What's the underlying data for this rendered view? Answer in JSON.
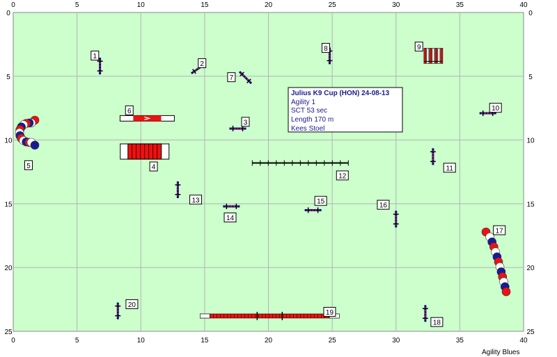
{
  "field": {
    "width_m": 40,
    "height_m": 25,
    "bg": "#ccffcc",
    "grid": "#b3b3b3"
  },
  "axes": {
    "x_ticks": [
      0,
      5,
      10,
      15,
      20,
      25,
      30,
      35,
      40
    ],
    "y_ticks": [
      0,
      5,
      10,
      15,
      20,
      25
    ]
  },
  "info": {
    "title": "Julius K9 Cup (HON) 24-08-13",
    "class": "Agility 1",
    "sct": "SCT 53 sec",
    "length": "Length 170 m",
    "judge": "Kees Stoel"
  },
  "footer": "Agility Blues",
  "colors": {
    "red": "#ee1111",
    "blue": "#1a1a99",
    "post": "#000088",
    "bar": "#cc2222"
  },
  "obstacles": [
    {
      "n": "1",
      "type": "jump",
      "x": 6.8,
      "y": 4.2,
      "angle": 90,
      "label": [
        6.4,
        3.4
      ]
    },
    {
      "n": "2",
      "type": "jump",
      "x": 14.5,
      "y": 4.4,
      "angle": -35,
      "label": [
        14.8,
        4.0
      ]
    },
    {
      "n": "3",
      "type": "jump",
      "x": 17.6,
      "y": 9.1,
      "angle": 0,
      "label": [
        18.2,
        8.6
      ]
    },
    {
      "n": "4",
      "type": "tunnel",
      "x": 10.3,
      "y": 10.9,
      "angle": 0,
      "label": [
        11.0,
        12.1
      ]
    },
    {
      "n": "5",
      "type": "curved",
      "label": [
        1.2,
        12.0
      ]
    },
    {
      "n": "6",
      "type": "tire",
      "x": 10.5,
      "y": 8.3,
      "angle": 0,
      "label": [
        9.1,
        7.7
      ]
    },
    {
      "n": "7",
      "type": "jump",
      "x": 18.2,
      "y": 5.1,
      "angle": 45,
      "label": [
        17.1,
        5.1
      ]
    },
    {
      "n": "8",
      "type": "jump",
      "x": 24.8,
      "y": 3.4,
      "angle": 90,
      "label": [
        24.5,
        2.8
      ]
    },
    {
      "n": "9",
      "type": "weave",
      "x": 32.9,
      "y": 3.4,
      "angle": 0,
      "label": [
        31.8,
        2.7
      ]
    },
    {
      "n": "10",
      "type": "jump",
      "x": 37.2,
      "y": 7.9,
      "angle": 0,
      "label": [
        37.8,
        7.5
      ]
    },
    {
      "n": "11",
      "type": "jump",
      "x": 32.9,
      "y": 11.3,
      "angle": 90,
      "label": [
        34.2,
        12.2
      ]
    },
    {
      "n": "12",
      "type": "dogwalk",
      "x": 22.5,
      "y": 11.8,
      "angle": 0,
      "label": [
        25.8,
        12.8
      ]
    },
    {
      "n": "13",
      "type": "jump",
      "x": 12.9,
      "y": 13.9,
      "angle": 90,
      "label": [
        14.3,
        14.7
      ]
    },
    {
      "n": "14",
      "type": "jump",
      "x": 17.1,
      "y": 15.2,
      "angle": 0,
      "label": [
        17.0,
        16.1
      ]
    },
    {
      "n": "15",
      "type": "jump",
      "x": 23.5,
      "y": 15.5,
      "angle": 0,
      "label": [
        24.1,
        14.8
      ]
    },
    {
      "n": "16",
      "type": "jump",
      "x": 30.0,
      "y": 16.2,
      "angle": 90,
      "label": [
        29.0,
        15.1
      ]
    },
    {
      "n": "17",
      "type": "curved",
      "label": [
        38.1,
        17.1
      ]
    },
    {
      "n": "18",
      "type": "jump",
      "x": 32.3,
      "y": 23.6,
      "angle": 90,
      "label": [
        33.2,
        24.3
      ]
    },
    {
      "n": "19",
      "type": "seesaw",
      "x": 20.1,
      "y": 23.8,
      "angle": 0,
      "label": [
        24.8,
        23.5
      ]
    },
    {
      "n": "20",
      "type": "jump",
      "x": 8.2,
      "y": 23.4,
      "angle": 90,
      "label": [
        9.3,
        22.9
      ]
    }
  ]
}
